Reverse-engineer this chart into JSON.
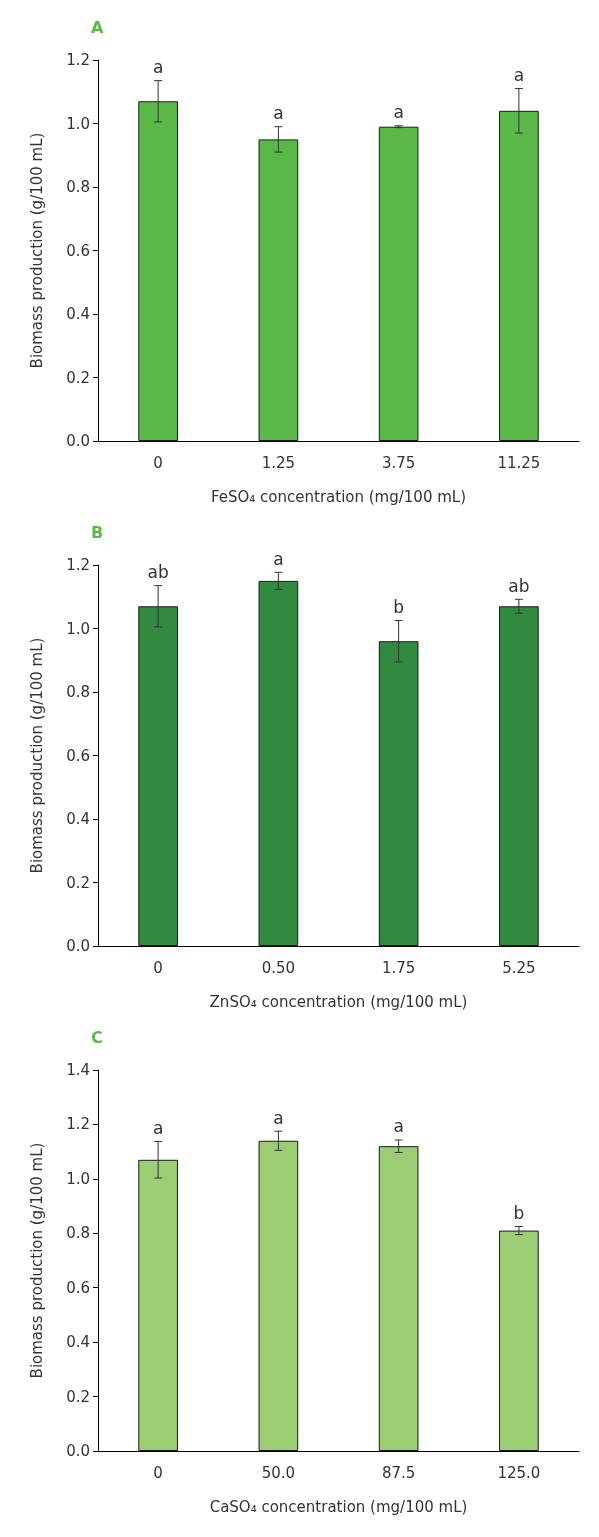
{
  "chart_data": [
    {
      "type": "bar",
      "title": "A",
      "xlabel": "FeSO₄ concentration (mg/100 mL)",
      "ylabel": "Biomass production (g/100 mL)",
      "categories": [
        "0",
        "1.25",
        "3.75",
        "11.25"
      ],
      "values": [
        1.07,
        0.95,
        0.99,
        1.04
      ],
      "errors": [
        0.065,
        0.04,
        0.003,
        0.07
      ],
      "color": "#5ab946",
      "ylim": [
        0,
        1.2
      ],
      "yticks": [
        {
          "value": 0,
          "label": "0.0"
        },
        {
          "value": 0.2,
          "label": "0.2"
        },
        {
          "value": 0.4,
          "label": "0.4"
        },
        {
          "value": 0.6,
          "label": "0.6"
        },
        {
          "value": 0.8,
          "label": "0.8"
        },
        {
          "value": 1,
          "label": "1.0"
        },
        {
          "value": 1.2,
          "label": "1.2"
        }
      ],
      "grid": false,
      "annotations": [
        {
          "text": "a",
          "x": "0",
          "y": 1.135
        },
        {
          "text": "a",
          "x": "1.25",
          "y": 0.99
        },
        {
          "text": "a",
          "x": "3.75",
          "y": 0.993
        },
        {
          "text": "a",
          "x": "11.25",
          "y": 1.11
        }
      ]
    },
    {
      "type": "bar",
      "title": "B",
      "xlabel": "ZnSO₄ concentration (mg/100 mL)",
      "ylabel": "Biomass production (g/100 mL)",
      "categories": [
        "0",
        "0.50",
        "1.75",
        "5.25"
      ],
      "values": [
        1.07,
        1.15,
        0.96,
        1.07
      ],
      "errors": [
        0.065,
        0.027,
        0.065,
        0.022
      ],
      "color": "#328a41",
      "ylim": [
        0,
        1.2
      ],
      "yticks": [
        {
          "value": 0,
          "label": "0.0"
        },
        {
          "value": 0.2,
          "label": "0.2"
        },
        {
          "value": 0.4,
          "label": "0.4"
        },
        {
          "value": 0.6,
          "label": "0.6"
        },
        {
          "value": 0.8,
          "label": "0.8"
        },
        {
          "value": 1,
          "label": "1.0"
        },
        {
          "value": 1.2,
          "label": "1.2"
        }
      ],
      "grid": false,
      "annotations": [
        {
          "text": "ab",
          "x": "0",
          "y": 1.135
        },
        {
          "text": "a",
          "x": "0.50",
          "y": 1.177
        },
        {
          "text": "b",
          "x": "1.75",
          "y": 1.025
        },
        {
          "text": "ab",
          "x": "5.25",
          "y": 1.092
        }
      ]
    },
    {
      "type": "bar",
      "title": "C",
      "xlabel": "CaSO₄ concentration (mg/100 mL)",
      "ylabel": "Biomass production (g/100 mL)",
      "categories": [
        "0",
        "50.0",
        "87.5",
        "125.0"
      ],
      "values": [
        1.07,
        1.14,
        1.12,
        0.81
      ],
      "errors": [
        0.067,
        0.035,
        0.023,
        0.015
      ],
      "color": "#9ccc74",
      "ylim": [
        0,
        1.4
      ],
      "yticks": [
        {
          "value": 0,
          "label": "0.0"
        },
        {
          "value": 0.2,
          "label": "0.2"
        },
        {
          "value": 0.4,
          "label": "0.4"
        },
        {
          "value": 0.6,
          "label": "0.6"
        },
        {
          "value": 0.8,
          "label": "0.8"
        },
        {
          "value": 1,
          "label": "1.0"
        },
        {
          "value": 1.2,
          "label": "1.2"
        },
        {
          "value": 1.4,
          "label": "1.4"
        }
      ],
      "grid": false,
      "annotations": [
        {
          "text": "a",
          "x": "0",
          "y": 1.137
        },
        {
          "text": "a",
          "x": "50.0",
          "y": 1.175
        },
        {
          "text": "a",
          "x": "87.5",
          "y": 1.145
        },
        {
          "text": "b",
          "x": "125.0",
          "y": 0.825
        }
      ]
    }
  ]
}
